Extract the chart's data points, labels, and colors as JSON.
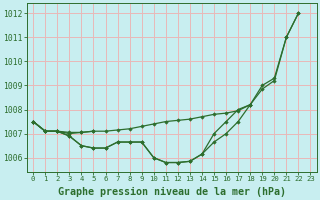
{
  "bg_color": "#c8eef0",
  "grid_color": "#e8b8b8",
  "line_color": "#2d6e2d",
  "title": "Graphe pression niveau de la mer (hPa)",
  "ylim": [
    1005.4,
    1012.4
  ],
  "xlim": [
    -0.5,
    23.5
  ],
  "yticks": [
    1006,
    1007,
    1008,
    1009,
    1010,
    1011,
    1012
  ],
  "xticks": [
    0,
    1,
    2,
    3,
    4,
    5,
    6,
    7,
    8,
    9,
    10,
    11,
    12,
    13,
    14,
    15,
    16,
    17,
    18,
    19,
    20,
    21,
    22,
    23
  ],
  "s1_x": [
    0,
    1,
    2,
    3,
    4,
    5,
    6,
    7,
    8,
    9,
    10,
    11,
    12,
    13,
    14,
    15,
    16,
    17,
    18,
    19,
    20,
    21,
    22
  ],
  "s1_y": [
    1007.5,
    1007.1,
    1007.1,
    1006.9,
    1006.5,
    1006.4,
    1006.4,
    1006.65,
    1006.65,
    1006.65,
    1006.0,
    1005.8,
    1005.8,
    1005.85,
    1006.15,
    1006.65,
    1007.0,
    1007.5,
    1008.2,
    1009.0,
    1009.3,
    1011.0,
    1012.0
  ],
  "s2_x": [
    0,
    1,
    2,
    3,
    4,
    5,
    6,
    7,
    8,
    9,
    10,
    11,
    12,
    13,
    14,
    15,
    16,
    17,
    18
  ],
  "s2_y": [
    1007.5,
    1007.1,
    1007.1,
    1007.05,
    1007.05,
    1007.1,
    1007.1,
    1007.15,
    1007.2,
    1007.3,
    1007.4,
    1007.5,
    1007.55,
    1007.6,
    1007.7,
    1007.8,
    1007.85,
    1007.95,
    1008.2
  ],
  "s3_x": [
    0,
    1,
    2,
    3,
    4,
    5
  ],
  "s3_y": [
    1007.5,
    1007.1,
    1007.1,
    1007.0,
    1007.05,
    1007.1
  ],
  "s4_x": [
    0,
    1,
    2,
    3,
    4,
    5,
    6,
    7,
    8,
    9,
    10,
    11,
    12,
    13,
    14,
    15,
    16,
    17,
    18,
    19,
    20,
    21,
    22
  ],
  "s4_y": [
    1007.5,
    1007.1,
    1007.1,
    1006.9,
    1006.5,
    1006.4,
    1006.4,
    1006.65,
    1006.65,
    1006.65,
    1006.0,
    1005.8,
    1005.8,
    1005.85,
    1006.15,
    1007.0,
    1007.5,
    1008.0,
    1008.2,
    1008.85,
    1009.2,
    1011.0,
    1012.0
  ]
}
